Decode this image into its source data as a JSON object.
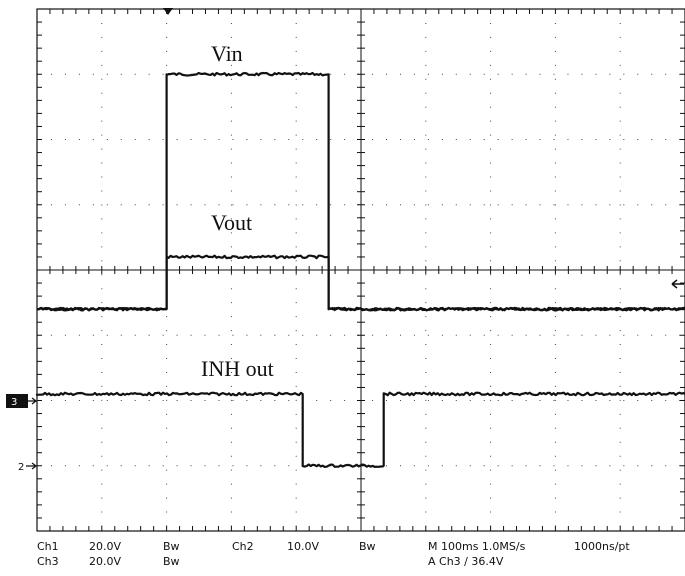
{
  "chart_data": {
    "type": "line",
    "title": "",
    "grid": true,
    "xdivisions": 10,
    "ydivisions": 8,
    "xunit": "div",
    "series": [
      {
        "name": "Vin",
        "x": [
          0,
          2.0,
          2.0,
          4.5,
          4.5,
          10
        ],
        "y": [
          -0.6,
          -0.6,
          3.0,
          3.0,
          -0.6,
          -0.6
        ]
      },
      {
        "name": "Vout",
        "x": [
          0,
          2.0,
          2.0,
          4.5,
          4.5,
          10
        ],
        "y": [
          -0.6,
          -0.6,
          0.2,
          0.2,
          -0.6,
          -0.6
        ]
      },
      {
        "name": "INH out",
        "x": [
          0,
          4.1,
          4.1,
          5.35,
          5.35,
          10
        ],
        "y": [
          -1.9,
          -1.9,
          -3.0,
          -3.0,
          -1.9,
          -1.9
        ]
      }
    ],
    "markers": {
      "ch3": "3",
      "ch2": "2"
    }
  },
  "readout": {
    "row1": [
      "Ch1",
      "20.0V",
      "Bw",
      "Ch2",
      "10.0V",
      "Bw",
      "M 100ms 1.0MS/s",
      "1000ns/pt"
    ],
    "row2": [
      "Ch3",
      "20.0V",
      "Bw",
      "A  Ch3  ∕  36.4V"
    ]
  }
}
